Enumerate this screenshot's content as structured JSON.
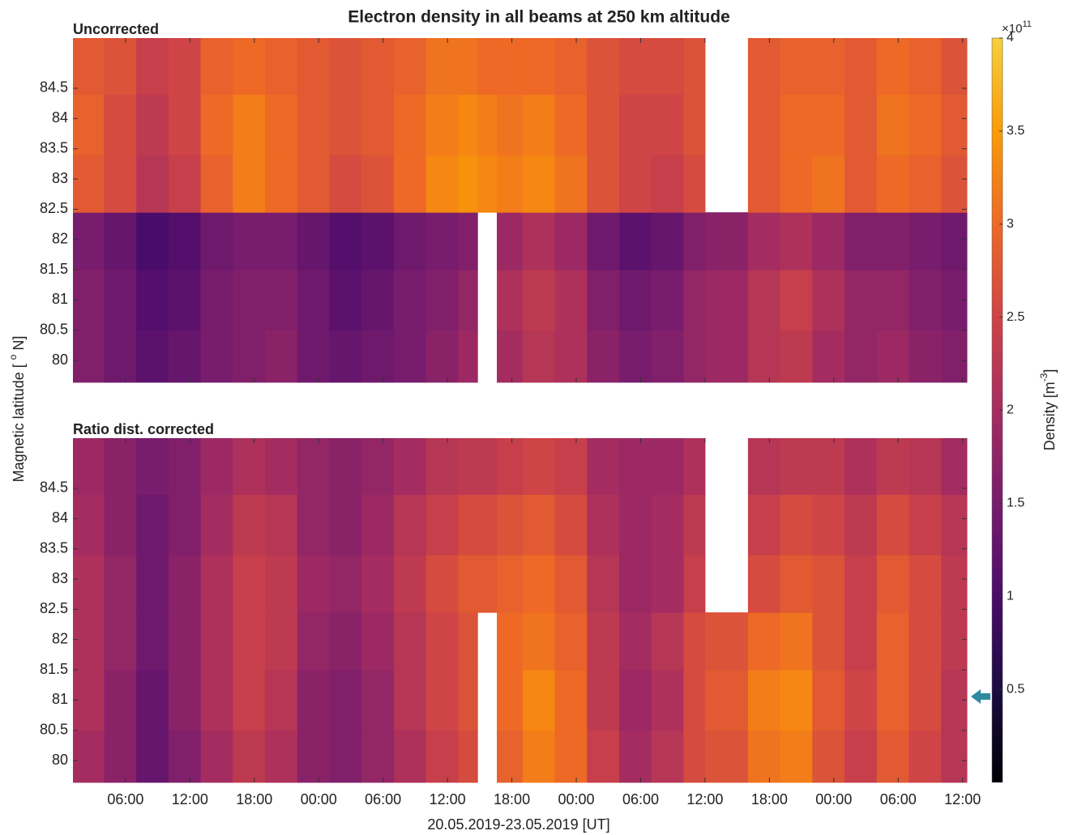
{
  "figure": {
    "title": "Electron density in all beams at 250 km altitude",
    "xlabel": "20.05.2019-23.05.2019 [UT]",
    "ylabel": [
      "Magnetic latitude [ ",
      "o",
      " N]"
    ],
    "colorbar": {
      "lim": [
        0,
        4
      ],
      "ticks": [
        0.5,
        1,
        1.5,
        2,
        2.5,
        3,
        3.5,
        4
      ],
      "multiplier": "×10",
      "exponent": "11",
      "label": [
        "Density [m",
        "-3",
        "]"
      ],
      "colormap": "inferno"
    }
  },
  "chart_data": [
    {
      "type": "heatmap",
      "subtitle": "Uncorrected",
      "colormap": "inferno",
      "clim": [
        0,
        4
      ],
      "x_edges": [
        1.1,
        4,
        7,
        10,
        13,
        16,
        19,
        22,
        25,
        28,
        31,
        34,
        37,
        38.8,
        40.6,
        43,
        46,
        49,
        52,
        55,
        58,
        60,
        64,
        67,
        70,
        73,
        76,
        79,
        82,
        84.4
      ],
      "y_edges": [
        79.64,
        80.5,
        81.5,
        82.45,
        83.4,
        84.4,
        85.33
      ],
      "xlim": [
        1.1,
        84.4
      ],
      "ylim": [
        79.64,
        85.33
      ],
      "yticks": [
        80,
        80.5,
        81,
        81.5,
        82,
        82.5,
        83,
        83.5,
        84,
        84.5
      ],
      "values": [
        [
          1.6,
          1.4,
          1.2,
          1.3,
          1.5,
          1.6,
          1.7,
          1.4,
          1.3,
          1.4,
          1.5,
          1.7,
          1.9,
          null,
          2.0,
          2.2,
          2.1,
          1.7,
          1.5,
          1.6,
          1.8,
          1.9,
          2.2,
          2.3,
          2.0,
          1.8,
          1.9,
          1.7,
          1.6
        ],
        [
          1.6,
          1.4,
          1.1,
          1.2,
          1.5,
          1.6,
          1.6,
          1.4,
          1.2,
          1.3,
          1.5,
          1.6,
          1.8,
          null,
          2.1,
          2.3,
          2.1,
          1.6,
          1.4,
          1.5,
          1.8,
          1.9,
          2.2,
          2.4,
          2.1,
          1.8,
          1.8,
          1.6,
          1.5
        ],
        [
          1.5,
          1.3,
          1.0,
          1.1,
          1.4,
          1.5,
          1.5,
          1.3,
          1.1,
          1.2,
          1.4,
          1.5,
          1.6,
          null,
          1.9,
          2.1,
          1.9,
          1.4,
          1.2,
          1.3,
          1.6,
          1.7,
          2.0,
          2.1,
          1.9,
          1.6,
          1.6,
          1.5,
          1.4
        ],
        [
          2.8,
          2.6,
          2.2,
          2.4,
          2.9,
          3.2,
          3.0,
          2.8,
          2.6,
          2.7,
          3.0,
          3.3,
          3.4,
          3.3,
          3.2,
          3.3,
          3.1,
          2.7,
          2.5,
          2.4,
          2.6,
          null,
          2.8,
          3.0,
          3.1,
          2.8,
          3.0,
          2.9,
          2.7
        ],
        [
          2.9,
          2.6,
          2.3,
          2.5,
          3.0,
          3.2,
          3.0,
          2.8,
          2.7,
          2.8,
          3.0,
          3.2,
          3.3,
          3.2,
          3.1,
          3.2,
          3.0,
          2.7,
          2.5,
          2.5,
          2.7,
          null,
          2.8,
          3.0,
          3.0,
          2.8,
          3.1,
          3.0,
          2.8
        ],
        [
          2.8,
          2.7,
          2.4,
          2.5,
          2.9,
          3.0,
          2.9,
          2.8,
          2.7,
          2.8,
          2.9,
          3.1,
          3.1,
          3.0,
          3.0,
          3.0,
          2.9,
          2.7,
          2.6,
          2.6,
          2.7,
          null,
          2.8,
          2.9,
          2.9,
          2.8,
          3.0,
          2.9,
          2.7
        ]
      ]
    },
    {
      "type": "heatmap",
      "subtitle": "Ratio dist. corrected",
      "colormap": "inferno",
      "clim": [
        0,
        4
      ],
      "x_edges": [
        1.1,
        4,
        7,
        10,
        13,
        16,
        19,
        22,
        25,
        28,
        31,
        34,
        37,
        38.8,
        40.6,
        43,
        46,
        49,
        52,
        55,
        58,
        60,
        64,
        67,
        70,
        73,
        76,
        79,
        82,
        84.4
      ],
      "y_edges": [
        79.64,
        80.5,
        81.5,
        82.45,
        83.4,
        84.4,
        85.33
      ],
      "xlim": [
        1.1,
        84.4
      ],
      "ylim": [
        79.64,
        85.33
      ],
      "yticks": [
        80,
        80.5,
        81,
        81.5,
        82,
        82.5,
        83,
        83.5,
        84,
        84.5
      ],
      "xticks": [
        {
          "value": 6,
          "label": "06:00"
        },
        {
          "value": 12,
          "label": "12:00"
        },
        {
          "value": 18,
          "label": "18:00"
        },
        {
          "value": 24,
          "label": "00:00"
        },
        {
          "value": 30,
          "label": "06:00"
        },
        {
          "value": 36,
          "label": "12:00"
        },
        {
          "value": 42,
          "label": "18:00"
        },
        {
          "value": 48,
          "label": "00:00"
        },
        {
          "value": 54,
          "label": "06:00"
        },
        {
          "value": 60,
          "label": "12:00"
        },
        {
          "value": 66,
          "label": "18:00"
        },
        {
          "value": 72,
          "label": "00:00"
        },
        {
          "value": 78,
          "label": "06:00"
        },
        {
          "value": 84,
          "label": "12:00"
        }
      ],
      "values": [
        [
          2.0,
          1.7,
          1.3,
          1.6,
          2.0,
          2.3,
          2.1,
          1.7,
          1.6,
          1.8,
          2.1,
          2.4,
          2.6,
          null,
          2.9,
          3.2,
          3.0,
          2.4,
          2.0,
          2.2,
          2.6,
          2.7,
          3.1,
          3.2,
          2.7,
          2.4,
          2.8,
          2.5,
          2.2
        ],
        [
          2.1,
          1.7,
          1.3,
          1.7,
          2.1,
          2.4,
          2.2,
          1.7,
          1.6,
          1.8,
          2.2,
          2.5,
          2.7,
          null,
          3.0,
          3.3,
          3.0,
          2.3,
          1.9,
          2.1,
          2.6,
          2.8,
          3.2,
          3.3,
          2.8,
          2.5,
          2.9,
          2.6,
          2.2
        ],
        [
          2.1,
          1.8,
          1.4,
          1.7,
          2.1,
          2.4,
          2.3,
          1.8,
          1.7,
          1.9,
          2.2,
          2.5,
          2.7,
          null,
          3.0,
          3.1,
          2.9,
          2.3,
          2.0,
          2.2,
          2.6,
          2.7,
          3.0,
          3.1,
          2.7,
          2.4,
          2.9,
          2.6,
          2.3
        ],
        [
          2.1,
          1.8,
          1.4,
          1.7,
          2.1,
          2.4,
          2.3,
          1.9,
          1.8,
          2.0,
          2.3,
          2.6,
          2.8,
          2.8,
          2.9,
          3.0,
          2.8,
          2.2,
          1.9,
          2.0,
          2.4,
          null,
          2.6,
          2.8,
          2.7,
          2.4,
          2.8,
          2.6,
          2.3
        ],
        [
          2.0,
          1.7,
          1.4,
          1.6,
          2.0,
          2.3,
          2.2,
          1.8,
          1.7,
          1.9,
          2.2,
          2.4,
          2.6,
          2.6,
          2.7,
          2.8,
          2.6,
          2.1,
          1.9,
          2.0,
          2.3,
          null,
          2.4,
          2.6,
          2.5,
          2.3,
          2.6,
          2.4,
          2.2
        ],
        [
          1.9,
          1.7,
          1.5,
          1.6,
          1.9,
          2.1,
          2.0,
          1.8,
          1.7,
          1.8,
          2.0,
          2.2,
          2.3,
          2.3,
          2.4,
          2.5,
          2.4,
          2.0,
          1.9,
          1.9,
          2.1,
          null,
          2.2,
          2.3,
          2.3,
          2.1,
          2.3,
          2.2,
          2.0
        ]
      ]
    }
  ]
}
